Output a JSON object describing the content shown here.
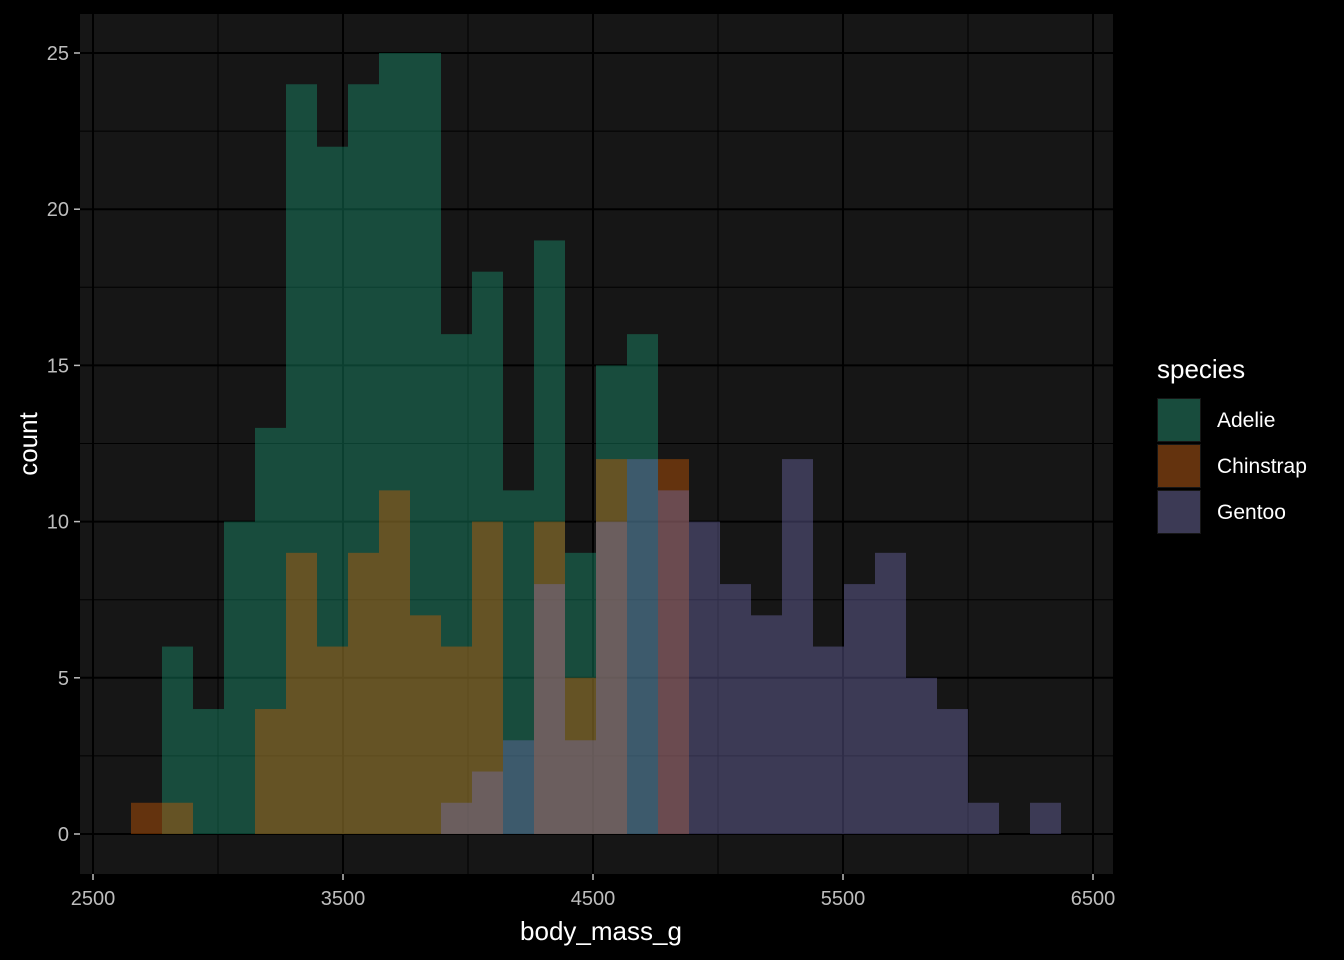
{
  "chart_data": {
    "type": "histogram",
    "title": "",
    "xlabel": "body_mass_g",
    "ylabel": "count",
    "xlim": [
      2500,
      6500
    ],
    "ylim": [
      0,
      25
    ],
    "x_ticks": [
      2500,
      3500,
      4500,
      5500,
      6500
    ],
    "x_tick_labels": [
      "2500",
      "3500",
      "4500",
      "5500",
      "6500"
    ],
    "y_ticks": [
      0,
      5,
      10,
      15,
      20,
      25
    ],
    "y_tick_labels": [
      "0",
      "5",
      "10",
      "15",
      "20",
      "25"
    ],
    "grid": true,
    "position": "overlapping (identity), semi-transparent",
    "legend": {
      "title": "species",
      "placement": "right"
    },
    "bins_start": [
      2652,
      2776,
      2900,
      3024,
      3148,
      3272,
      3396,
      3520,
      3644,
      3768,
      3892,
      4016,
      4140,
      4264,
      4388,
      4512,
      4636,
      4760,
      4884,
      5008,
      5132,
      5256,
      5380,
      5504,
      5628,
      5752,
      5876,
      6000,
      6124,
      6248
    ],
    "bin_width": 124,
    "series": [
      {
        "name": "Adelie",
        "color": "#1b9e77",
        "values": [
          0,
          6,
          4,
          10,
          13,
          24,
          22,
          24,
          25,
          25,
          16,
          18,
          11,
          19,
          9,
          15,
          16,
          0,
          0,
          0,
          0,
          0,
          0,
          0,
          0,
          0,
          0,
          0,
          0,
          0
        ]
      },
      {
        "name": "Chinstrap",
        "color": "#d95f02",
        "values": [
          1,
          1,
          0,
          0,
          4,
          9,
          6,
          9,
          11,
          7,
          6,
          10,
          0,
          10,
          5,
          12,
          0,
          12,
          0,
          0,
          0,
          0,
          0,
          0,
          0,
          0,
          0,
          0,
          0,
          0
        ]
      },
      {
        "name": "Gentoo",
        "color": "#7570b3",
        "values": [
          0,
          0,
          0,
          0,
          0,
          0,
          0,
          0,
          0,
          0,
          1,
          2,
          3,
          8,
          3,
          10,
          12,
          11,
          10,
          8,
          7,
          12,
          6,
          8,
          9,
          5,
          4,
          1,
          0,
          1
        ]
      }
    ]
  }
}
